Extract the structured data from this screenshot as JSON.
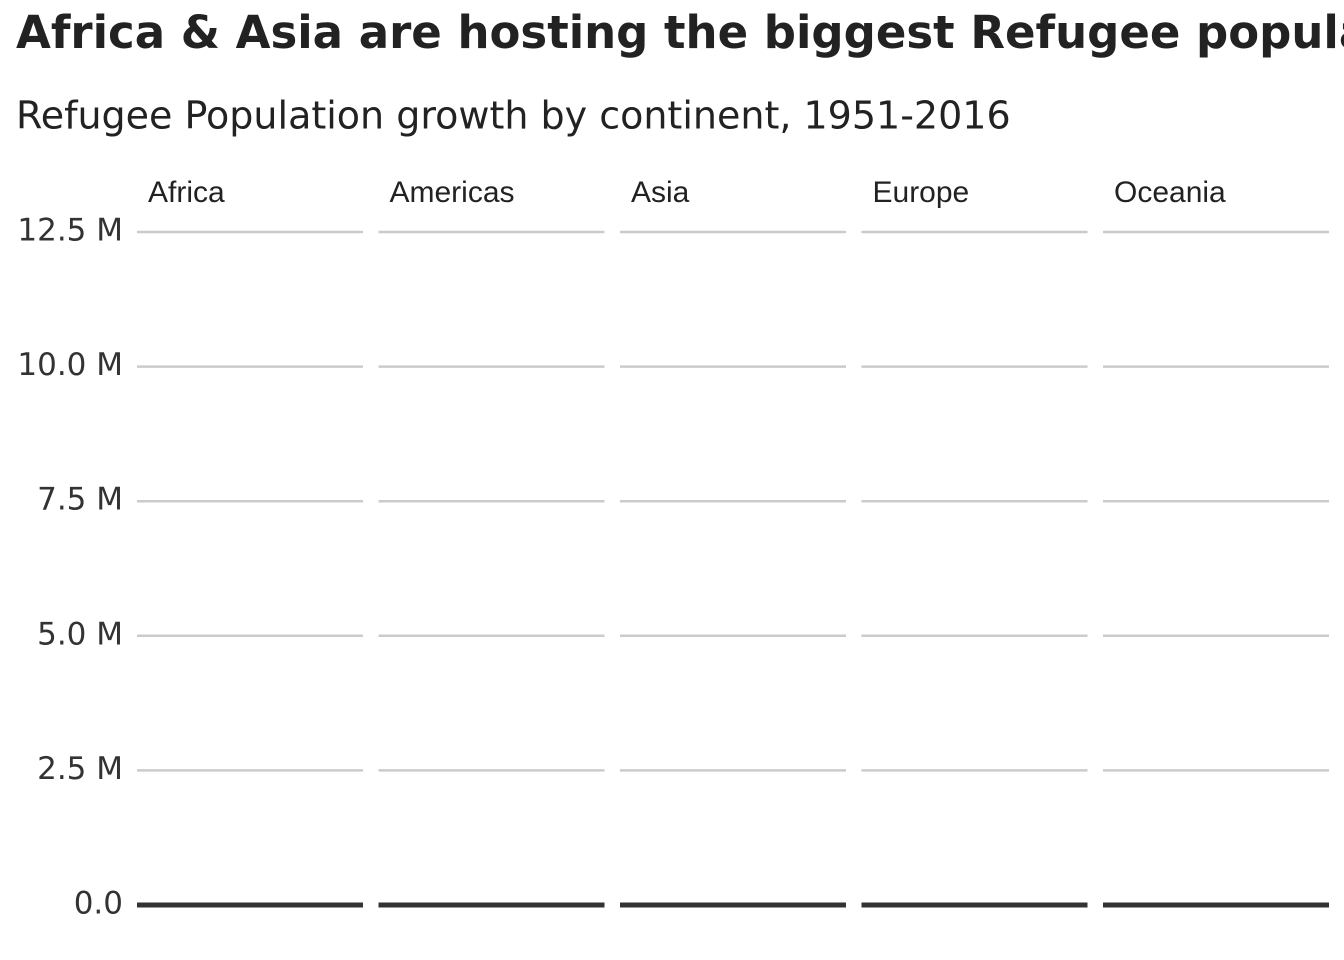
{
  "chart_data": {
    "type": "line",
    "title": "Africa & Asia are hosting the biggest Refugee population",
    "subtitle": "Refugee Population growth by continent, 1951-2016",
    "facets": [
      "Africa",
      "Americas",
      "Asia",
      "Europe",
      "Oceania"
    ],
    "ylim": [
      0,
      12500000
    ],
    "yticks": [
      {
        "value": 0,
        "label": "0.0"
      },
      {
        "value": 2500000,
        "label": "2.5 M"
      },
      {
        "value": 5000000,
        "label": "5.0 M"
      },
      {
        "value": 7500000,
        "label": "7.5 M"
      },
      {
        "value": 10000000,
        "label": "10.0 M"
      },
      {
        "value": 12500000,
        "label": "12.5 M"
      }
    ],
    "grid": true
  }
}
